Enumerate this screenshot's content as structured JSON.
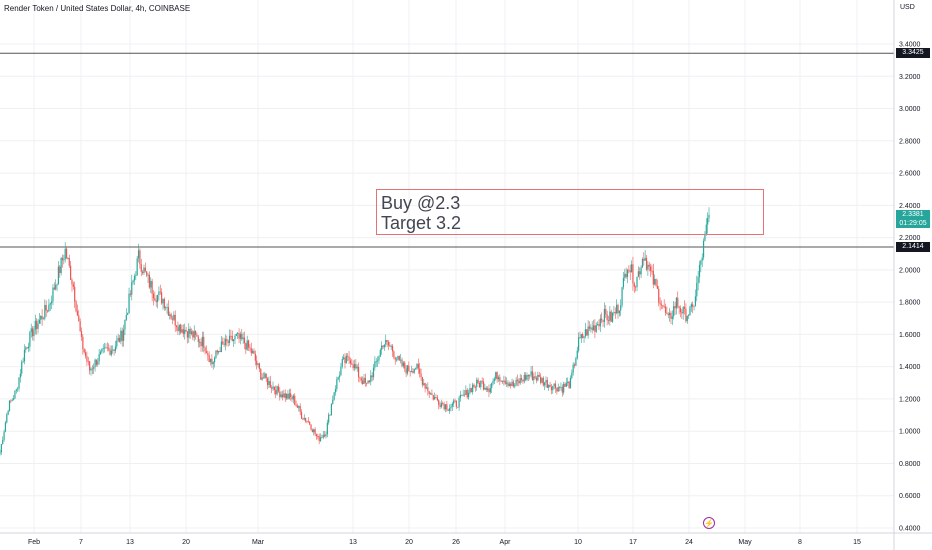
{
  "header": {
    "title": "Render Token / United States Dollar, 4h, COINBASE",
    "currency": "USD"
  },
  "annotation": {
    "line1": "Buy @2.3",
    "line2": "Target 3.2",
    "border_color": "#e57373"
  },
  "price_tags": {
    "resistance": "3.3425",
    "current_price": "2.3381",
    "countdown": "01:29:05",
    "support": "2.1414"
  },
  "colors": {
    "up": "#26a69a",
    "down": "#ef5350",
    "grid": "#eef0f3",
    "level_line": "#555555",
    "axis_text": "#131722"
  },
  "icons": {
    "event": "lightning-icon"
  },
  "chart_data": {
    "type": "candlestick",
    "title": "Render Token / United States Dollar, 4h, COINBASE",
    "ylabel": "USD",
    "ylim": [
      0.4,
      3.5
    ],
    "y_ticks": [
      "3.4000",
      "3.2000",
      "3.0000",
      "2.8000",
      "2.6000",
      "2.4000",
      "2.2000",
      "2.0000",
      "1.8000",
      "1.6000",
      "1.4000",
      "1.2000",
      "1.0000",
      "0.8000",
      "0.6000",
      "0.4000"
    ],
    "x_ticks": [
      "Feb",
      "7",
      "13",
      "20",
      "Mar",
      "13",
      "20",
      "26",
      "Apr",
      "10",
      "17",
      "24",
      "May",
      "8",
      "15"
    ],
    "horizontal_levels": [
      3.3425,
      2.1414
    ],
    "series": [
      {
        "values": [
          [
            "Jan 30",
            0.87
          ],
          [
            "Jan 31",
            1.15
          ],
          [
            "Feb 1",
            1.25
          ],
          [
            "Feb 2",
            1.5
          ],
          [
            "Feb 3",
            1.62
          ],
          [
            "Feb 4",
            1.7
          ],
          [
            "Feb 5",
            1.78
          ],
          [
            "Feb 6",
            1.95
          ],
          [
            "Feb 7",
            2.12
          ],
          [
            "Feb 8",
            1.9
          ],
          [
            "Feb 9",
            1.55
          ],
          [
            "Feb 10",
            1.38
          ],
          [
            "Feb 11",
            1.45
          ],
          [
            "Feb 12",
            1.5
          ],
          [
            "Feb 13",
            1.52
          ],
          [
            "Feb 14",
            1.6
          ],
          [
            "Feb 15",
            1.85
          ],
          [
            "Feb 16",
            2.08
          ],
          [
            "Feb 17",
            1.95
          ],
          [
            "Feb 18",
            1.85
          ],
          [
            "Feb 19",
            1.82
          ],
          [
            "Feb 20",
            1.72
          ],
          [
            "Feb 21",
            1.65
          ],
          [
            "Feb 22",
            1.62
          ],
          [
            "Feb 23",
            1.58
          ],
          [
            "Feb 24",
            1.55
          ],
          [
            "Feb 25",
            1.42
          ],
          [
            "Feb 26",
            1.52
          ],
          [
            "Feb 27",
            1.55
          ],
          [
            "Feb 28",
            1.58
          ],
          [
            "Mar 1",
            1.55
          ],
          [
            "Mar 2",
            1.48
          ],
          [
            "Mar 3",
            1.35
          ],
          [
            "Mar 4",
            1.3
          ],
          [
            "Mar 5",
            1.25
          ],
          [
            "Mar 6",
            1.22
          ],
          [
            "Mar 7",
            1.2
          ],
          [
            "Mar 8",
            1.1
          ],
          [
            "Mar 9",
            1.05
          ],
          [
            "Mar 10",
            0.95
          ],
          [
            "Mar 11",
            1.0
          ],
          [
            "Mar 12",
            1.25
          ],
          [
            "Mar 13",
            1.42
          ],
          [
            "Mar 14",
            1.45
          ],
          [
            "Mar 15",
            1.35
          ],
          [
            "Mar 16",
            1.28
          ],
          [
            "Mar 17",
            1.4
          ],
          [
            "Mar 18",
            1.55
          ],
          [
            "Mar 19",
            1.52
          ],
          [
            "Mar 20",
            1.42
          ],
          [
            "Mar 21",
            1.38
          ],
          [
            "Mar 22",
            1.4
          ],
          [
            "Mar 23",
            1.3
          ],
          [
            "Mar 24",
            1.22
          ],
          [
            "Mar 25",
            1.18
          ],
          [
            "Mar 26",
            1.15
          ],
          [
            "Mar 27",
            1.17
          ],
          [
            "Mar 28",
            1.22
          ],
          [
            "Mar 29",
            1.28
          ],
          [
            "Mar 30",
            1.3
          ],
          [
            "Mar 31",
            1.27
          ],
          [
            "Apr 1",
            1.35
          ],
          [
            "Apr 2",
            1.32
          ],
          [
            "Apr 3",
            1.28
          ],
          [
            "Apr 4",
            1.32
          ],
          [
            "Apr 5",
            1.35
          ],
          [
            "Apr 6",
            1.33
          ],
          [
            "Apr 7",
            1.3
          ],
          [
            "Apr 8",
            1.28
          ],
          [
            "Apr 9",
            1.27
          ],
          [
            "Apr 10",
            1.3
          ],
          [
            "Apr 11",
            1.55
          ],
          [
            "Apr 12",
            1.62
          ],
          [
            "Apr 13",
            1.65
          ],
          [
            "Apr 14",
            1.72
          ],
          [
            "Apr 15",
            1.7
          ],
          [
            "Apr 16",
            1.78
          ],
          [
            "Apr 17",
            2.05
          ],
          [
            "Apr 18",
            1.92
          ],
          [
            "Apr 19",
            2.1
          ],
          [
            "Apr 20",
            1.95
          ],
          [
            "Apr 21",
            1.82
          ],
          [
            "Apr 22",
            1.68
          ],
          [
            "Apr 23",
            1.8
          ],
          [
            "Apr 24",
            1.72
          ],
          [
            "Apr 25",
            1.75
          ],
          [
            "Apr 26",
            2.05
          ],
          [
            "Apr 27",
            2.34
          ]
        ]
      }
    ]
  }
}
